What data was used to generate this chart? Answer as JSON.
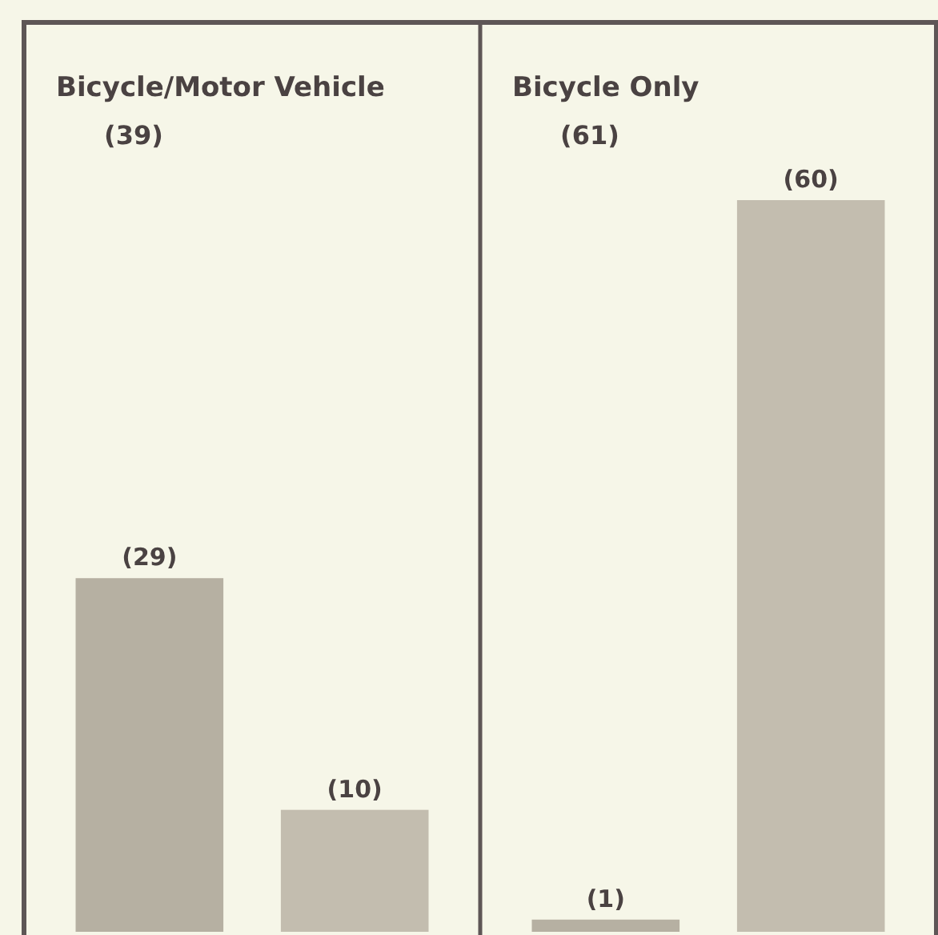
{
  "chart_data": [
    {
      "type": "bar",
      "title": "Bicycle/Motor Vehicle",
      "subtitle": "(39)",
      "categories": [
        null,
        null
      ],
      "values": [
        29,
        10
      ],
      "value_labels": [
        "(29)",
        "(10)"
      ],
      "colors": [
        "#b6b0a2",
        "#c3bdaf"
      ]
    },
    {
      "type": "bar",
      "title": "Bicycle Only",
      "subtitle": "(61)",
      "categories": [
        null,
        null
      ],
      "values": [
        1,
        60
      ],
      "value_labels": [
        "(1)",
        "(60)"
      ],
      "colors": [
        "#b6b0a2",
        "#c3bdaf"
      ]
    }
  ]
}
